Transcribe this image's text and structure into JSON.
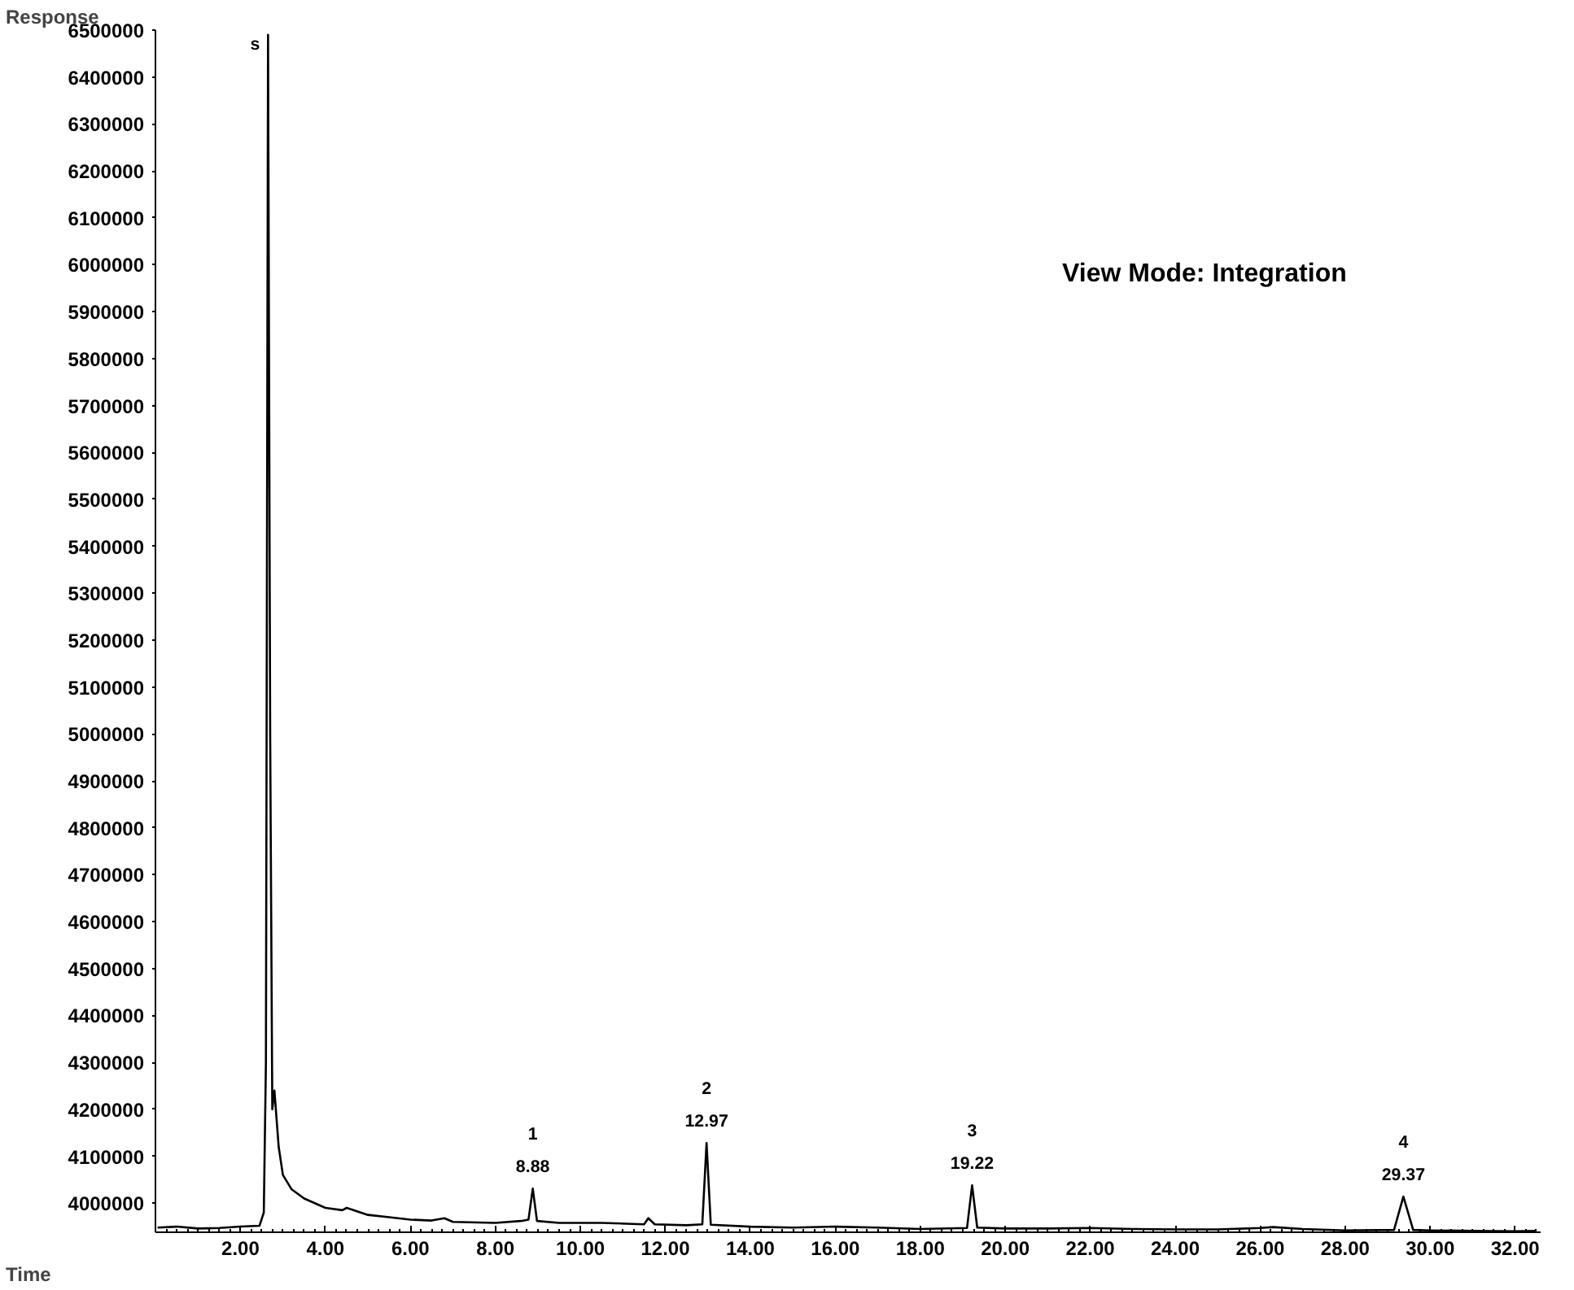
{
  "chart_data": {
    "type": "line",
    "xlabel": "Time",
    "ylabel": "Response",
    "annotations": [
      "View Mode: Integration",
      {
        "text": "s",
        "x": 2.65,
        "y": 6490000
      },
      {
        "text": "1",
        "x": 8.88,
        "y": 4031000
      },
      {
        "text": "8.88",
        "x": 8.88,
        "y": 4031000
      },
      {
        "text": "2",
        "x": 12.97,
        "y": 4128000
      },
      {
        "text": "12.97",
        "x": 12.97,
        "y": 4128000
      },
      {
        "text": "3",
        "x": 19.22,
        "y": 4038000
      },
      {
        "text": "19.22",
        "x": 19.22,
        "y": 4038000
      },
      {
        "text": "4",
        "x": 29.37,
        "y": 4014000
      },
      {
        "text": "29.37",
        "x": 29.37,
        "y": 4014000
      }
    ],
    "series": [
      {
        "color": "#000000",
        "x": [
          0.05,
          0.5,
          1.0,
          1.5,
          2.0,
          2.45,
          2.55,
          2.6,
          2.65,
          2.7,
          2.75,
          2.8,
          2.85,
          2.9,
          3.0,
          3.2,
          3.5,
          4.0,
          4.4,
          4.5,
          5.0,
          5.5,
          6.0,
          6.5,
          6.8,
          7.0,
          8.0,
          8.6,
          8.78,
          8.88,
          8.98,
          9.5,
          10.5,
          11.5,
          11.6,
          11.75,
          12.5,
          12.87,
          12.97,
          13.07,
          14.0,
          15.0,
          16.0,
          17.0,
          18.0,
          19.1,
          19.22,
          19.34,
          20.0,
          21.0,
          22.0,
          23.0,
          24.0,
          25.0,
          26.0,
          26.3,
          27.0,
          28.0,
          29.15,
          29.37,
          29.6,
          30.0,
          31.0,
          32.0,
          32.5
        ],
        "values": [
          3948000,
          3950000,
          3946000,
          3947000,
          3950000,
          3952000,
          3980000,
          4300000,
          6490000,
          5000000,
          4200000,
          4240000,
          4180000,
          4120000,
          4060000,
          4030000,
          4010000,
          3990000,
          3985000,
          3990000,
          3975000,
          3970000,
          3965000,
          3963000,
          3968000,
          3960000,
          3958000,
          3962000,
          3965000,
          4031000,
          3962000,
          3958000,
          3958000,
          3955000,
          3968000,
          3955000,
          3953000,
          3955000,
          4128000,
          3954000,
          3950000,
          3948000,
          3950000,
          3948000,
          3945000,
          3947000,
          4038000,
          3948000,
          3946000,
          3946000,
          3947000,
          3945000,
          3944000,
          3944000,
          3947000,
          3949000,
          3945000,
          3942000,
          3943000,
          4014000,
          3943000,
          3942000,
          3941000,
          3940000,
          3941000
        ]
      }
    ],
    "xlim": [
      0,
      32.6
    ],
    "ylim": [
      3938000,
      6500000
    ],
    "xticks": [
      {
        "value": 2,
        "label": "2.00"
      },
      {
        "value": 4,
        "label": "4.00"
      },
      {
        "value": 6,
        "label": "6.00"
      },
      {
        "value": 8,
        "label": "8.00"
      },
      {
        "value": 10,
        "label": "10.00"
      },
      {
        "value": 12,
        "label": "12.00"
      },
      {
        "value": 14,
        "label": "14.00"
      },
      {
        "value": 16,
        "label": "16.00"
      },
      {
        "value": 18,
        "label": "18.00"
      },
      {
        "value": 20,
        "label": "20.00"
      },
      {
        "value": 22,
        "label": "22.00"
      },
      {
        "value": 24,
        "label": "24.00"
      },
      {
        "value": 26,
        "label": "26.00"
      },
      {
        "value": 28,
        "label": "28.00"
      },
      {
        "value": 30,
        "label": "30.00"
      },
      {
        "value": 32,
        "label": "32.00"
      }
    ],
    "yticks": [
      4000000,
      4100000,
      4200000,
      4300000,
      4400000,
      4500000,
      4600000,
      4700000,
      4800000,
      4900000,
      5000000,
      5100000,
      5200000,
      5300000,
      5400000,
      5500000,
      5600000,
      5700000,
      5800000,
      5900000,
      6000000,
      6100000,
      6200000,
      6300000,
      6400000,
      6500000
    ],
    "grid": false,
    "marker": "none",
    "line_style": "solid"
  }
}
